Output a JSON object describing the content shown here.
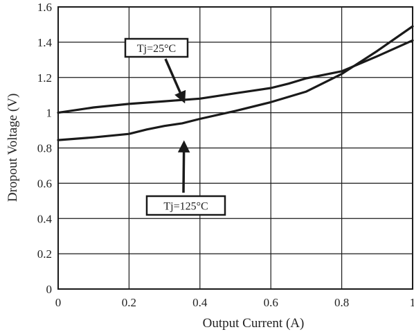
{
  "chart_data": {
    "type": "line",
    "xlabel": "Output Current (A)",
    "ylabel": "Dropout Voltage (V)",
    "xlim": [
      0,
      1
    ],
    "ylim": [
      0,
      1.6
    ],
    "grid": true,
    "x_ticks": [
      0,
      0.2,
      0.4,
      0.6,
      0.8,
      1
    ],
    "x_tick_labels": [
      "0",
      "0.2",
      "0.4",
      "0.6",
      "0.8",
      "1"
    ],
    "y_ticks": [
      0,
      0.2,
      0.4,
      0.6,
      0.8,
      1,
      1.2,
      1.4,
      1.6
    ],
    "y_tick_labels": [
      "0",
      "0.2",
      "0.4",
      "0.6",
      "0.8",
      "1",
      "1.2",
      "1.4",
      "1.6"
    ],
    "series": [
      {
        "name": "Tj=25°C",
        "x": [
          0,
          0.05,
          0.1,
          0.2,
          0.3,
          0.4,
          0.5,
          0.6,
          0.65,
          0.7,
          0.75,
          0.8,
          0.9,
          1.0
        ],
        "y": [
          1.0,
          1.015,
          1.03,
          1.05,
          1.065,
          1.08,
          1.11,
          1.14,
          1.165,
          1.195,
          1.215,
          1.235,
          1.32,
          1.41
        ]
      },
      {
        "name": "Tj=125°C",
        "x": [
          0,
          0.1,
          0.2,
          0.25,
          0.3,
          0.35,
          0.4,
          0.5,
          0.6,
          0.7,
          0.8,
          0.9,
          1.0
        ],
        "y": [
          0.845,
          0.86,
          0.88,
          0.905,
          0.925,
          0.94,
          0.965,
          1.01,
          1.06,
          1.12,
          1.22,
          1.35,
          1.49
        ]
      }
    ],
    "annotations": [
      {
        "text": "Tj=25°C",
        "series": "Tj=25°C",
        "arrow_to_x": 0.355,
        "arrow_to_y": 1.065
      },
      {
        "text": "Tj=125°C",
        "series": "Tj=125°C",
        "arrow_to_x": 0.355,
        "arrow_to_y": 0.83
      }
    ],
    "colors": {
      "line": "#1a1a1a",
      "grid": "#1a1a1a",
      "background": "#ffffff"
    }
  }
}
